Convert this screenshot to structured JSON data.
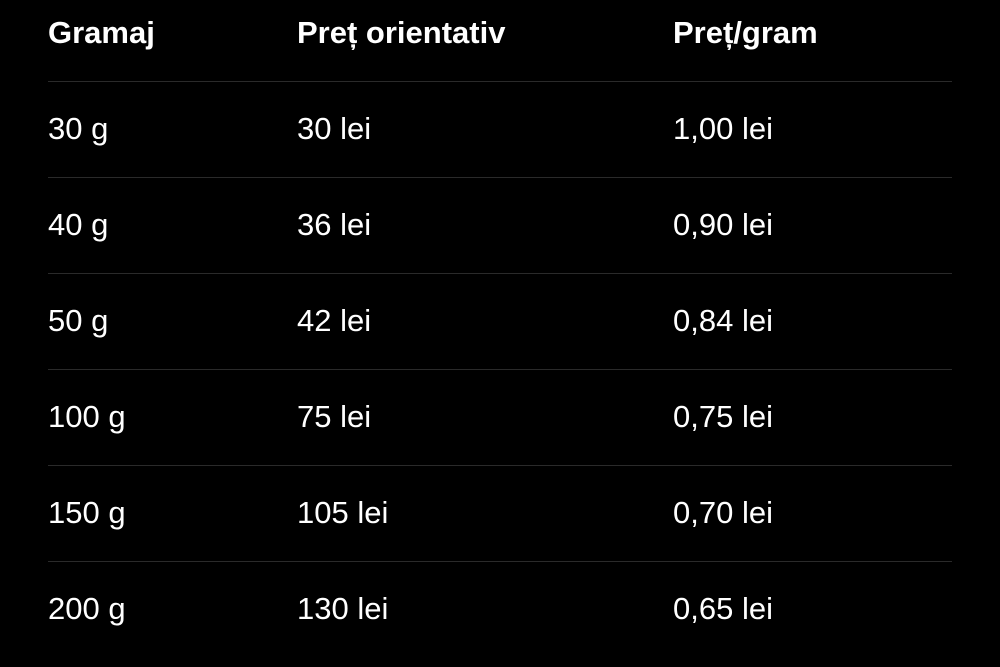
{
  "table": {
    "headers": [
      "Gramaj",
      "Preț orientativ",
      "Preț/gram"
    ],
    "rows": [
      [
        "30 g",
        "30 lei",
        "1,00 lei"
      ],
      [
        "40 g",
        "36 lei",
        "0,90 lei"
      ],
      [
        "50 g",
        "42 lei",
        "0,84 lei"
      ],
      [
        "100 g",
        "75 lei",
        "0,75 lei"
      ],
      [
        "150 g",
        "105 lei",
        "0,70 lei"
      ],
      [
        "200 g",
        "130 lei",
        "0,65 lei"
      ]
    ]
  },
  "colors": {
    "background": "#000000",
    "text": "#ffffff",
    "divider": "#2a2a2a"
  }
}
